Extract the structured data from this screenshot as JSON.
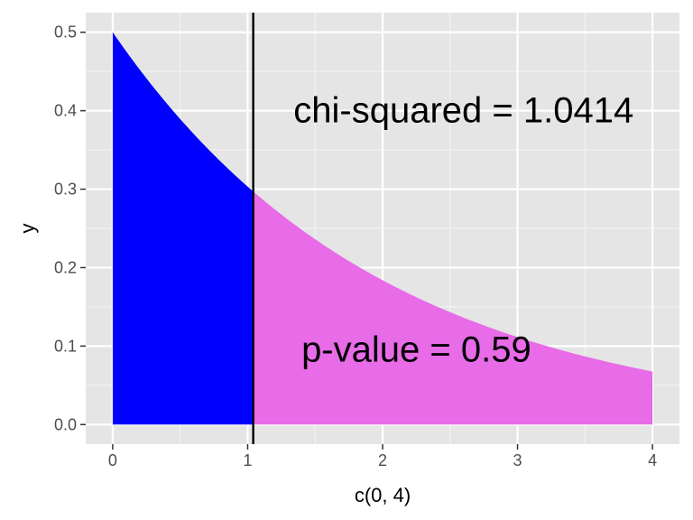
{
  "chart_data": {
    "type": "area",
    "title": "",
    "xlabel": "c(0, 4)",
    "ylabel": "y",
    "xlim": [
      -0.2,
      4.2
    ],
    "ylim": [
      -0.025,
      0.525
    ],
    "x_ticks": [
      0,
      1,
      2,
      3,
      4
    ],
    "x_tick_labels": [
      "0",
      "1",
      "2",
      "3",
      "4"
    ],
    "y_ticks": [
      0.0,
      0.1,
      0.2,
      0.3,
      0.4,
      0.5
    ],
    "y_tick_labels": [
      "0.0",
      "0.1",
      "0.2",
      "0.3",
      "0.4",
      "0.5"
    ],
    "grid": true,
    "background": "#e5e5e5",
    "curve": {
      "distribution": "chi-squared density, df = 2",
      "x": [
        0,
        0.25,
        0.5,
        0.75,
        1.0,
        1.0414,
        1.5,
        2.0,
        2.5,
        3.0,
        3.5,
        4.0
      ],
      "y": [
        0.5,
        0.441,
        0.389,
        0.344,
        0.303,
        0.297,
        0.236,
        0.184,
        0.143,
        0.112,
        0.087,
        0.068
      ]
    },
    "regions": [
      {
        "from": 0,
        "to": 1.0414,
        "color": "#0000ff"
      },
      {
        "from": 1.0414,
        "to": 4,
        "color": "#e86be8"
      }
    ],
    "vline": {
      "x": 1.0414,
      "color": "#000000"
    },
    "annotations": [
      {
        "text": "chi-squared = 1.0414",
        "x": 2.6,
        "y": 0.4
      },
      {
        "text": "p-value = 0.59",
        "x": 2.25,
        "y": 0.095
      }
    ]
  }
}
